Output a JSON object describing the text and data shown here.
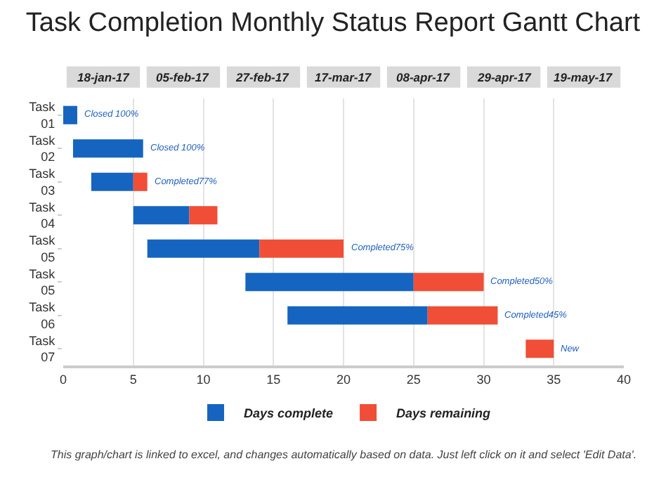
{
  "chart_data": {
    "type": "bar",
    "title": "Task Completion Monthly Status Report Gantt Chart",
    "orientation": "horizontal",
    "categories": [
      "Task 01",
      "Task 02",
      "Task 03",
      "Task 04",
      "Task 05",
      "Task 05",
      "Task 06",
      "Task 07"
    ],
    "series": [
      {
        "name": "Days complete",
        "color": "#1565c0",
        "base": [
          0,
          0.7,
          2,
          5,
          6,
          13,
          16,
          null
        ],
        "values": [
          1,
          5,
          3,
          4,
          8,
          12,
          10,
          null
        ]
      },
      {
        "name": "Days remaining",
        "color": "#f04e37",
        "base": [
          null,
          null,
          5,
          9,
          14,
          25,
          26,
          33
        ],
        "values": [
          null,
          null,
          1,
          2,
          6,
          5,
          5,
          2
        ],
        "value_labels": [
          "Closed 100%",
          "Closed 100%",
          "Completed77%",
          null,
          "Completed75%",
          "Completed50%",
          "Completed45%",
          "New"
        ]
      }
    ],
    "xlim": [
      0,
      40
    ],
    "xticks": [
      0,
      5,
      10,
      15,
      20,
      25,
      30,
      35,
      40
    ],
    "grid": "x",
    "legend": "bottom",
    "annotations": [
      "18-jan-17",
      "05-feb-17",
      "27-feb-17",
      "17-mar-17",
      "08-apr-17",
      "29-apr-17",
      "19-may-17",
      "This graph/chart is linked to excel, and changes automatically based on data. Just left click on it and select 'Edit Data'."
    ]
  }
}
